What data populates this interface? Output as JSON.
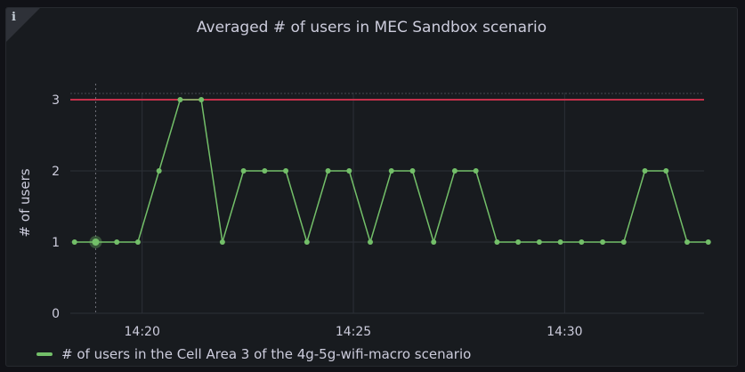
{
  "panel": {
    "title": "Averaged # of users in MEC Sandbox scenario",
    "info_glyph": "i"
  },
  "colors": {
    "series": "#73bf69",
    "threshold": "#c4314b",
    "grid": "#2c3037",
    "axis_text": "#ccccdc",
    "panel_bg": "#181b1f"
  },
  "chart_data": {
    "type": "line",
    "title": "Averaged # of users in MEC Sandbox scenario",
    "xlabel": "",
    "ylabel": "# of users",
    "x_tick_labels": [
      "14:20",
      "14:25",
      "14:30"
    ],
    "x_ticks_minutes": [
      20,
      25,
      30
    ],
    "y_ticks": [
      0,
      1,
      2,
      3
    ],
    "ylim": [
      0,
      3.1
    ],
    "xlim_minutes": [
      18.3,
      33.3
    ],
    "grid": true,
    "legend_position": "bottom-left",
    "threshold": {
      "value": 3
    },
    "hover_marker": {
      "x_minute": 18.9,
      "value": 1
    },
    "series": [
      {
        "name": "# of users in the Cell Area 3 of the 4g-5g-wifi-macro scenario",
        "x_minutes": [
          18.4,
          18.9,
          19.4,
          19.9,
          20.4,
          20.9,
          21.4,
          21.9,
          22.4,
          22.9,
          23.4,
          23.9,
          24.4,
          24.9,
          25.4,
          25.9,
          26.4,
          26.9,
          27.4,
          27.9,
          28.4,
          28.9,
          29.4,
          29.9,
          30.4,
          30.9,
          31.4,
          31.9,
          32.4,
          32.9,
          33.4
        ],
        "values": [
          1,
          1,
          1,
          1,
          2,
          3,
          3,
          1,
          2,
          2,
          2,
          1,
          2,
          2,
          1,
          2,
          2,
          1,
          2,
          2,
          1,
          1,
          1,
          1,
          1,
          1,
          1,
          2,
          2,
          1,
          1
        ]
      }
    ]
  }
}
